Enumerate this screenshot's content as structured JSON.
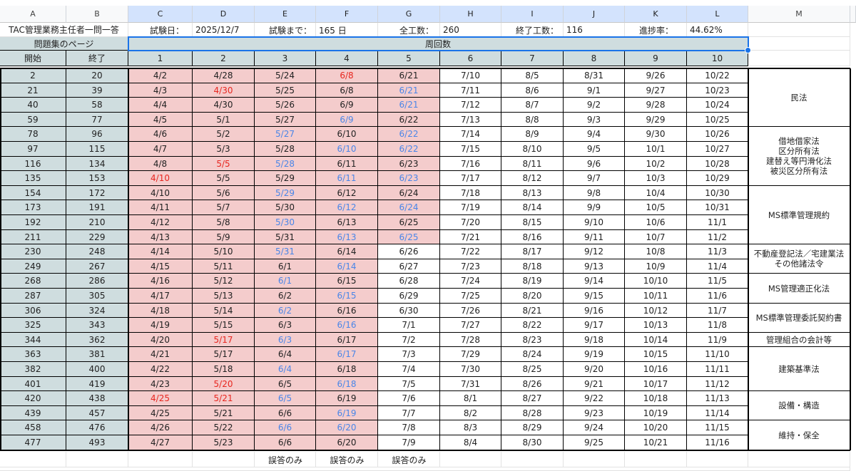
{
  "columns": [
    "A",
    "B",
    "C",
    "D",
    "E",
    "F",
    "G",
    "H",
    "I",
    "J",
    "K",
    "L",
    "M"
  ],
  "info": {
    "title": "TAC管理業務主任者一問一答",
    "exam_label": "試験日：",
    "exam_date": "2025/12/7",
    "until_label": "試験まで：",
    "until_value": "165 日",
    "total_label": "全工数：",
    "total_value": "260",
    "done_label": "終了工数：",
    "done_value": "116",
    "progress_label": "進捗率：",
    "progress_value": "44.62%"
  },
  "headers": {
    "pages_label": "問題集のページ",
    "laps_label": "周回数",
    "start_label": "開始",
    "end_label": "終了",
    "laps": [
      "1",
      "2",
      "3",
      "4",
      "5",
      "6",
      "7",
      "8",
      "9",
      "10"
    ]
  },
  "rows": [
    {
      "start": "2",
      "end": "20",
      "d": [
        "4/2",
        "4/28",
        "5/24",
        "6/8",
        "6/21",
        "7/10",
        "8/5",
        "8/31",
        "9/26",
        "10/22"
      ]
    },
    {
      "start": "21",
      "end": "39",
      "d": [
        "4/3",
        "4/30",
        "5/25",
        "6/8",
        "6/21",
        "7/11",
        "8/6",
        "9/1",
        "9/27",
        "10/23"
      ]
    },
    {
      "start": "40",
      "end": "58",
      "d": [
        "4/4",
        "4/30",
        "5/26",
        "6/9",
        "6/21",
        "7/12",
        "8/7",
        "9/2",
        "9/28",
        "10/24"
      ]
    },
    {
      "start": "59",
      "end": "77",
      "d": [
        "4/5",
        "5/1",
        "5/27",
        "6/9",
        "6/22",
        "7/13",
        "8/8",
        "9/3",
        "9/29",
        "10/25"
      ]
    },
    {
      "start": "78",
      "end": "96",
      "d": [
        "4/6",
        "5/2",
        "5/27",
        "6/10",
        "6/22",
        "7/14",
        "8/9",
        "9/4",
        "9/30",
        "10/26"
      ]
    },
    {
      "start": "97",
      "end": "115",
      "d": [
        "4/7",
        "5/3",
        "5/28",
        "6/10",
        "6/22",
        "7/15",
        "8/10",
        "9/5",
        "10/1",
        "10/27"
      ]
    },
    {
      "start": "116",
      "end": "134",
      "d": [
        "4/8",
        "5/5",
        "5/28",
        "6/11",
        "6/23",
        "7/16",
        "8/11",
        "9/6",
        "10/2",
        "10/28"
      ]
    },
    {
      "start": "135",
      "end": "153",
      "d": [
        "4/10",
        "5/5",
        "5/29",
        "6/11",
        "6/23",
        "7/17",
        "8/12",
        "9/7",
        "10/3",
        "10/29"
      ]
    },
    {
      "start": "154",
      "end": "172",
      "d": [
        "4/10",
        "5/6",
        "5/29",
        "6/12",
        "6/24",
        "7/18",
        "8/13",
        "9/8",
        "10/4",
        "10/30"
      ]
    },
    {
      "start": "173",
      "end": "191",
      "d": [
        "4/11",
        "5/7",
        "5/30",
        "6/12",
        "6/24",
        "7/19",
        "8/14",
        "9/9",
        "10/5",
        "10/31"
      ]
    },
    {
      "start": "192",
      "end": "210",
      "d": [
        "4/12",
        "5/8",
        "5/30",
        "6/13",
        "6/25",
        "7/20",
        "8/15",
        "9/10",
        "10/6",
        "11/1"
      ]
    },
    {
      "start": "211",
      "end": "229",
      "d": [
        "4/13",
        "5/9",
        "5/31",
        "6/13",
        "6/25",
        "7/21",
        "8/16",
        "9/11",
        "10/7",
        "11/2"
      ]
    },
    {
      "start": "230",
      "end": "248",
      "d": [
        "4/14",
        "5/10",
        "5/31",
        "6/14",
        "6/26",
        "7/22",
        "8/17",
        "9/12",
        "10/8",
        "11/3"
      ]
    },
    {
      "start": "249",
      "end": "267",
      "d": [
        "4/15",
        "5/11",
        "6/1",
        "6/14",
        "6/27",
        "7/23",
        "8/18",
        "9/13",
        "10/9",
        "11/4"
      ]
    },
    {
      "start": "268",
      "end": "286",
      "d": [
        "4/16",
        "5/12",
        "6/1",
        "6/15",
        "6/28",
        "7/24",
        "8/19",
        "9/14",
        "10/10",
        "11/5"
      ]
    },
    {
      "start": "287",
      "end": "305",
      "d": [
        "4/17",
        "5/13",
        "6/2",
        "6/15",
        "6/29",
        "7/25",
        "8/20",
        "9/15",
        "10/11",
        "11/6"
      ]
    },
    {
      "start": "306",
      "end": "324",
      "d": [
        "4/18",
        "5/14",
        "6/2",
        "6/16",
        "6/30",
        "7/26",
        "8/21",
        "9/16",
        "10/12",
        "11/7"
      ]
    },
    {
      "start": "325",
      "end": "343",
      "d": [
        "4/19",
        "5/15",
        "6/3",
        "6/16",
        "7/1",
        "7/27",
        "8/22",
        "9/17",
        "10/13",
        "11/8"
      ]
    },
    {
      "start": "344",
      "end": "362",
      "d": [
        "4/20",
        "5/17",
        "6/3",
        "6/17",
        "7/2",
        "7/28",
        "8/23",
        "9/18",
        "10/14",
        "11/9"
      ]
    },
    {
      "start": "363",
      "end": "381",
      "d": [
        "4/21",
        "5/17",
        "6/4",
        "6/17",
        "7/3",
        "7/29",
        "8/24",
        "9/19",
        "10/15",
        "11/10"
      ]
    },
    {
      "start": "382",
      "end": "400",
      "d": [
        "4/22",
        "5/18",
        "6/4",
        "6/18",
        "7/4",
        "7/30",
        "8/25",
        "9/20",
        "10/16",
        "11/11"
      ]
    },
    {
      "start": "401",
      "end": "419",
      "d": [
        "4/23",
        "5/20",
        "6/5",
        "6/18",
        "7/5",
        "7/31",
        "8/26",
        "9/21",
        "10/17",
        "11/12"
      ]
    },
    {
      "start": "420",
      "end": "438",
      "d": [
        "4/25",
        "5/21",
        "6/5",
        "6/19",
        "7/6",
        "8/1",
        "8/27",
        "9/22",
        "10/18",
        "11/13"
      ]
    },
    {
      "start": "439",
      "end": "457",
      "d": [
        "4/25",
        "5/21",
        "6/6",
        "6/19",
        "7/7",
        "8/2",
        "8/28",
        "9/23",
        "10/19",
        "11/14"
      ]
    },
    {
      "start": "458",
      "end": "476",
      "d": [
        "4/26",
        "5/22",
        "6/6",
        "6/20",
        "7/8",
        "8/3",
        "8/29",
        "9/24",
        "10/20",
        "11/15"
      ]
    },
    {
      "start": "477",
      "end": "493",
      "d": [
        "4/27",
        "5/23",
        "6/6",
        "6/20",
        "7/9",
        "8/4",
        "8/30",
        "9/25",
        "10/21",
        "11/16"
      ]
    }
  ],
  "red_cells": [
    "0-3",
    "1-1",
    "6-1",
    "7-0",
    "18-1",
    "21-1",
    "22-0",
    "22-1"
  ],
  "blue_cells": [
    "1-4",
    "2-4",
    "3-3",
    "4-2",
    "4-4",
    "5-3",
    "5-4",
    "6-2",
    "7-3",
    "7-4",
    "8-2",
    "9-3",
    "9-4",
    "10-2",
    "11-3",
    "11-4",
    "12-2",
    "13-3",
    "14-2",
    "15-3",
    "16-2",
    "17-3",
    "18-2",
    "19-3",
    "20-2",
    "21-3",
    "22-2",
    "23-3",
    "24-2",
    "24-3"
  ],
  "subjects": [
    {
      "label": "民法",
      "span": 4
    },
    {
      "label": "借地借家法\n区分所有法\n建替え等円滑化法\n被災区分所有法",
      "span": 4
    },
    {
      "label": "MS標準管理規約",
      "span": 4
    },
    {
      "label": "不動産登記法／宅建業法\nその他諸法令",
      "span": 2
    },
    {
      "label": "MS管理適正化法",
      "span": 2
    },
    {
      "label": "MS標準管理委託契約書",
      "span": 2
    },
    {
      "label": "管理組合の会計等",
      "span": 1
    },
    {
      "label": "建築基準法",
      "span": 3
    },
    {
      "label": "設備・構造",
      "span": 2
    },
    {
      "label": "維持・保全",
      "span": 2
    }
  ],
  "footer_notes": [
    "誤答のみ",
    "誤答のみ",
    "誤答のみ"
  ],
  "colors": {
    "gray_fill": "#cfdddf",
    "pink_fill": "#f4cccc",
    "red_text": "#e8261f",
    "blue_text": "#4a86e8",
    "selection": "#1a73e8"
  }
}
